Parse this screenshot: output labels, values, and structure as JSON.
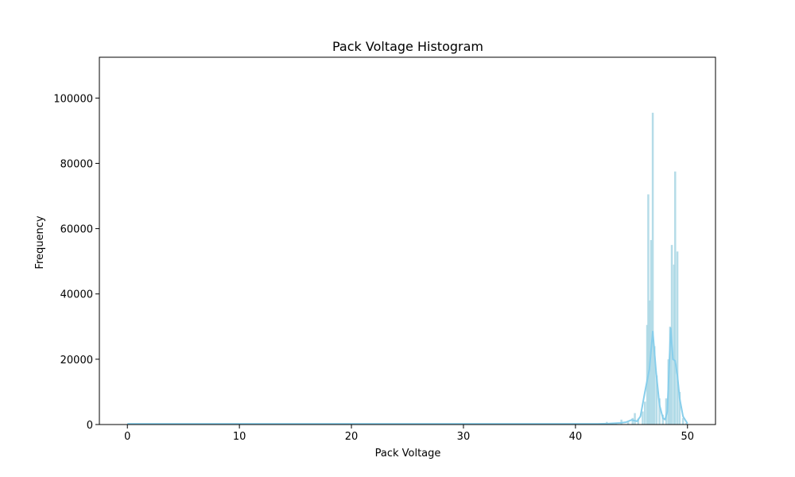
{
  "chart_data": {
    "type": "bar",
    "title": "Pack Voltage Histogram",
    "xlabel": "Pack Voltage",
    "ylabel": "Frequency",
    "xlim": [
      -2.5,
      52.5
    ],
    "ylim": [
      0,
      112500
    ],
    "x_ticks": [
      0,
      10,
      20,
      30,
      40,
      50
    ],
    "y_ticks": [
      0,
      20000,
      40000,
      60000,
      80000,
      100000
    ],
    "colors": {
      "bar": "#add8e6",
      "kde": "#87ceeb",
      "axis": "#000000"
    },
    "bars": [
      {
        "x": 42.8,
        "value": 800
      },
      {
        "x": 43.6,
        "value": 500
      },
      {
        "x": 44.1,
        "value": 1500
      },
      {
        "x": 44.7,
        "value": 800
      },
      {
        "x": 45.1,
        "value": 2000
      },
      {
        "x": 45.3,
        "value": 3500
      },
      {
        "x": 45.6,
        "value": 1800
      },
      {
        "x": 46.0,
        "value": 4000
      },
      {
        "x": 46.2,
        "value": 7000
      },
      {
        "x": 46.4,
        "value": 30500
      },
      {
        "x": 46.5,
        "value": 70500
      },
      {
        "x": 46.6,
        "value": 38000
      },
      {
        "x": 46.75,
        "value": 56500
      },
      {
        "x": 46.9,
        "value": 95500
      },
      {
        "x": 47.05,
        "value": 24000
      },
      {
        "x": 47.25,
        "value": 15000
      },
      {
        "x": 47.5,
        "value": 8000
      },
      {
        "x": 47.8,
        "value": 3000
      },
      {
        "x": 48.1,
        "value": 8000
      },
      {
        "x": 48.3,
        "value": 20000
      },
      {
        "x": 48.45,
        "value": 30000
      },
      {
        "x": 48.6,
        "value": 55000
      },
      {
        "x": 48.8,
        "value": 49000
      },
      {
        "x": 48.9,
        "value": 77500
      },
      {
        "x": 49.1,
        "value": 53000
      },
      {
        "x": 49.3,
        "value": 10000
      },
      {
        "x": 49.6,
        "value": 2000
      },
      {
        "x": 49.9,
        "value": 500
      }
    ],
    "kde": [
      {
        "x": 0,
        "y": 200
      },
      {
        "x": 42.0,
        "y": 200
      },
      {
        "x": 43.0,
        "y": 300
      },
      {
        "x": 44.0,
        "y": 500
      },
      {
        "x": 44.5,
        "y": 700
      },
      {
        "x": 45.0,
        "y": 1400
      },
      {
        "x": 45.5,
        "y": 1000
      },
      {
        "x": 45.8,
        "y": 2500
      },
      {
        "x": 46.2,
        "y": 10000
      },
      {
        "x": 46.6,
        "y": 17000
      },
      {
        "x": 46.9,
        "y": 28500
      },
      {
        "x": 47.2,
        "y": 16000
      },
      {
        "x": 47.5,
        "y": 6000
      },
      {
        "x": 47.8,
        "y": 2000
      },
      {
        "x": 48.0,
        "y": 1500
      },
      {
        "x": 48.2,
        "y": 4000
      },
      {
        "x": 48.5,
        "y": 29500
      },
      {
        "x": 48.7,
        "y": 20000
      },
      {
        "x": 48.9,
        "y": 19500
      },
      {
        "x": 49.1,
        "y": 15000
      },
      {
        "x": 49.3,
        "y": 8000
      },
      {
        "x": 49.6,
        "y": 2500
      },
      {
        "x": 50.0,
        "y": 300
      }
    ]
  }
}
